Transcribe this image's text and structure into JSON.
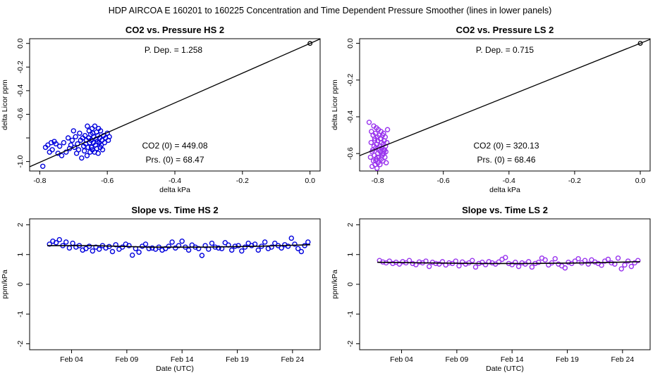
{
  "suptitle": "HDP    AIRCOA E    160201 to 160225    Concentration and Time Dependent Pressure Smoother (lines in lower panels)",
  "colors": {
    "hs": "#0000dd",
    "ls": "#9933ee",
    "line": "#000000"
  },
  "chart_data": [
    {
      "id": "p1",
      "type": "scatter",
      "title": "CO2 vs. Pressure HS 2",
      "xlabel": "delta kPa",
      "ylabel": "delta Licor ppm",
      "xlim": [
        -0.83,
        0.03
      ],
      "ylim": [
        -1.08,
        0.04
      ],
      "xticks": [
        -0.8,
        -0.6,
        -0.4,
        -0.2,
        0.0
      ],
      "xtick_labels": [
        "-0.8",
        "-0.6",
        "-0.4",
        "-0.2",
        "0.0"
      ],
      "yticks": [
        -1.0,
        -0.8,
        -0.6,
        -0.4,
        -0.2,
        0.0
      ],
      "ytick_labels": [
        "-1.0",
        "",
        "-0.6",
        "-0.4",
        "-0.2",
        "0.0"
      ],
      "color_key": "hs",
      "fit_slope": 1.258,
      "anchor_point": [
        0.0,
        0.0
      ],
      "points_x": [
        -0.791,
        -0.783,
        -0.776,
        -0.771,
        -0.766,
        -0.763,
        -0.757,
        -0.752,
        -0.746,
        -0.741,
        -0.735,
        -0.729,
        -0.722,
        -0.716,
        -0.712,
        -0.708,
        -0.704,
        -0.7,
        -0.697,
        -0.694,
        -0.691,
        -0.688,
        -0.685,
        -0.682,
        -0.679,
        -0.676,
        -0.673,
        -0.67,
        -0.668,
        -0.666,
        -0.664,
        -0.662,
        -0.66,
        -0.659,
        -0.657,
        -0.655,
        -0.654,
        -0.652,
        -0.651,
        -0.649,
        -0.648,
        -0.647,
        -0.645,
        -0.644,
        -0.643,
        -0.641,
        -0.64,
        -0.638,
        -0.637,
        -0.635,
        -0.633,
        -0.632,
        -0.631,
        -0.63,
        -0.628,
        -0.627,
        -0.626,
        -0.624,
        -0.623,
        -0.621,
        -0.62,
        -0.618,
        -0.616,
        -0.614,
        -0.611,
        -0.608,
        -0.605,
        -0.6,
        -0.597,
        -0.594
      ],
      "points_y": [
        -1.04,
        -0.88,
        -0.86,
        -0.92,
        -0.84,
        -0.9,
        -0.83,
        -0.85,
        -0.93,
        -0.87,
        -0.95,
        -0.84,
        -0.92,
        -0.8,
        -0.89,
        -0.86,
        -0.82,
        -0.74,
        -0.88,
        -0.79,
        -0.93,
        -0.85,
        -0.9,
        -0.76,
        -0.82,
        -0.97,
        -0.8,
        -0.87,
        -0.91,
        -0.78,
        -0.85,
        -0.82,
        -0.95,
        -0.7,
        -0.88,
        -0.8,
        -0.74,
        -0.84,
        -0.92,
        -0.77,
        -0.82,
        -0.88,
        -0.72,
        -0.9,
        -0.76,
        -0.84,
        -0.79,
        -0.92,
        -0.7,
        -0.86,
        -0.81,
        -0.75,
        -0.89,
        -0.83,
        -0.78,
        -0.93,
        -0.72,
        -0.84,
        -0.8,
        -0.88,
        -0.74,
        -0.86,
        -0.82,
        -0.9,
        -0.78,
        -0.84,
        -0.8,
        -0.76,
        -0.82,
        -0.79
      ],
      "annotations": {
        "pdep": "P. Dep. =  1.258",
        "co2_0": "CO2 (0) =  449.08",
        "prs_0": "Prs. (0) =  68.47"
      }
    },
    {
      "id": "p2",
      "type": "scatter",
      "title": "CO2 vs. Pressure LS 2",
      "xlabel": "delta kPa",
      "ylabel": "delta Licor ppm",
      "xlim": [
        -0.855,
        0.03
      ],
      "ylim": [
        -0.695,
        0.025
      ],
      "xticks": [
        -0.8,
        -0.6,
        -0.4,
        -0.2,
        0.0
      ],
      "xtick_labels": [
        "-0.8",
        "-0.6",
        "-0.4",
        "-0.2",
        "0.0"
      ],
      "yticks": [
        -0.6,
        -0.4,
        -0.2,
        0.0
      ],
      "ytick_labels": [
        "-0.6",
        "-0.4",
        "-0.2",
        "0.0"
      ],
      "color_key": "ls",
      "fit_slope": 0.715,
      "anchor_point": [
        0.0,
        0.0
      ],
      "points_x": [
        -0.826,
        -0.822,
        -0.82,
        -0.819,
        -0.817,
        -0.815,
        -0.814,
        -0.813,
        -0.812,
        -0.811,
        -0.81,
        -0.809,
        -0.808,
        -0.807,
        -0.806,
        -0.805,
        -0.804,
        -0.803,
        -0.802,
        -0.801,
        -0.8,
        -0.8,
        -0.799,
        -0.798,
        -0.797,
        -0.796,
        -0.795,
        -0.794,
        -0.793,
        -0.792,
        -0.791,
        -0.79,
        -0.789,
        -0.788,
        -0.787,
        -0.786,
        -0.785,
        -0.784,
        -0.783,
        -0.782,
        -0.781,
        -0.78,
        -0.779,
        -0.778,
        -0.777,
        -0.776,
        -0.775,
        -0.774,
        -0.772,
        -0.77,
        -0.817,
        -0.809,
        -0.801,
        -0.793,
        -0.785,
        -0.814,
        -0.806,
        -0.798,
        -0.79,
        -0.782
      ],
      "points_y": [
        -0.43,
        -0.62,
        -0.54,
        -0.48,
        -0.67,
        -0.58,
        -0.5,
        -0.64,
        -0.45,
        -0.56,
        -0.61,
        -0.52,
        -0.66,
        -0.49,
        -0.57,
        -0.63,
        -0.46,
        -0.55,
        -0.68,
        -0.51,
        -0.6,
        -0.53,
        -0.65,
        -0.47,
        -0.58,
        -0.62,
        -0.5,
        -0.56,
        -0.66,
        -0.52,
        -0.59,
        -0.48,
        -0.63,
        -0.54,
        -0.57,
        -0.61,
        -0.5,
        -0.64,
        -0.55,
        -0.49,
        -0.6,
        -0.53,
        -0.58,
        -0.62,
        -0.51,
        -0.56,
        -0.59,
        -0.65,
        -0.54,
        -0.47,
        -0.59,
        -0.53,
        -0.62,
        -0.56,
        -0.6,
        -0.5,
        -0.64,
        -0.57,
        -0.52,
        -0.58
      ],
      "annotations": {
        "pdep": "P. Dep. =  0.715",
        "co2_0": "CO2 (0) =  320.13",
        "prs_0": "Prs. (0) =  68.46"
      }
    },
    {
      "id": "p3",
      "type": "scatter",
      "title": "Slope vs. Time HS 2",
      "xlabel": "Date (UTC)",
      "ylabel": "ppm/kPa",
      "xlim": [
        -0.8,
        25.5
      ],
      "ylim": [
        -2.2,
        2.2
      ],
      "xticks": [
        3,
        8,
        13,
        18,
        23
      ],
      "xtick_labels": [
        "Feb 04",
        "Feb 09",
        "Feb 14",
        "Feb 19",
        "Feb 24"
      ],
      "yticks": [
        -2,
        -1,
        0,
        1,
        2
      ],
      "ytick_labels": [
        "-2",
        "-1",
        "0",
        "1",
        "2"
      ],
      "color_key": "hs",
      "smoother": {
        "x": [
          0.8,
          5,
          10,
          15,
          20,
          24.6
        ],
        "y": [
          1.3,
          1.3,
          1.25,
          1.25,
          1.28,
          1.33
        ]
      },
      "points_x": [
        1.0,
        1.3,
        1.6,
        1.9,
        2.2,
        2.5,
        2.8,
        3.1,
        3.4,
        3.7,
        4.0,
        4.3,
        4.6,
        4.9,
        5.2,
        5.5,
        5.8,
        6.1,
        6.4,
        6.7,
        7.0,
        7.3,
        7.6,
        7.9,
        8.2,
        8.5,
        8.8,
        9.1,
        9.4,
        9.7,
        10.0,
        10.3,
        10.6,
        10.9,
        11.2,
        11.5,
        11.8,
        12.1,
        12.4,
        12.7,
        13.0,
        13.3,
        13.6,
        13.9,
        14.2,
        14.5,
        14.8,
        15.1,
        15.4,
        15.7,
        16.0,
        16.3,
        16.6,
        16.9,
        17.2,
        17.5,
        17.8,
        18.1,
        18.4,
        18.7,
        19.0,
        19.3,
        19.6,
        19.9,
        20.2,
        20.5,
        20.8,
        21.1,
        21.4,
        21.7,
        22.0,
        22.3,
        22.6,
        22.9,
        23.2,
        23.5,
        23.8,
        24.1,
        24.4
      ],
      "points_y": [
        1.35,
        1.45,
        1.4,
        1.5,
        1.3,
        1.42,
        1.22,
        1.38,
        1.25,
        1.3,
        1.15,
        1.2,
        1.28,
        1.12,
        1.25,
        1.18,
        1.3,
        1.22,
        1.27,
        1.1,
        1.33,
        1.18,
        1.25,
        1.35,
        1.3,
        0.98,
        1.2,
        1.08,
        1.28,
        1.35,
        1.2,
        1.22,
        1.18,
        1.25,
        1.15,
        1.2,
        1.28,
        1.42,
        1.22,
        1.3,
        1.45,
        1.25,
        1.15,
        1.32,
        1.25,
        1.2,
        0.97,
        1.3,
        1.18,
        1.38,
        1.25,
        1.22,
        1.2,
        1.4,
        1.32,
        1.15,
        1.28,
        1.3,
        1.12,
        1.25,
        1.38,
        1.3,
        1.35,
        1.15,
        1.28,
        1.42,
        1.2,
        1.25,
        1.38,
        1.3,
        1.22,
        1.33,
        1.28,
        1.55,
        1.35,
        1.2,
        1.1,
        1.3,
        1.42
      ]
    },
    {
      "id": "p4",
      "type": "scatter",
      "title": "Slope vs. Time LS 2",
      "xlabel": "Date (UTC)",
      "ylabel": "ppm/kPa",
      "xlim": [
        -0.8,
        25.5
      ],
      "ylim": [
        -2.2,
        2.2
      ],
      "xticks": [
        3,
        8,
        13,
        18,
        23
      ],
      "xtick_labels": [
        "Feb 04",
        "Feb 09",
        "Feb 14",
        "Feb 19",
        "Feb 24"
      ],
      "yticks": [
        -2,
        -1,
        0,
        1,
        2
      ],
      "ytick_labels": [
        "-2",
        "-1",
        "0",
        "1",
        "2"
      ],
      "color_key": "ls",
      "smoother": {
        "x": [
          0.8,
          5,
          10,
          15,
          20,
          24.6
        ],
        "y": [
          0.74,
          0.72,
          0.7,
          0.7,
          0.72,
          0.76
        ]
      },
      "points_x": [
        1.0,
        1.3,
        1.6,
        1.9,
        2.2,
        2.5,
        2.8,
        3.1,
        3.4,
        3.7,
        4.0,
        4.3,
        4.6,
        4.9,
        5.2,
        5.5,
        5.8,
        6.1,
        6.4,
        6.7,
        7.0,
        7.3,
        7.6,
        7.9,
        8.2,
        8.5,
        8.8,
        9.1,
        9.4,
        9.7,
        10.0,
        10.3,
        10.6,
        10.9,
        11.2,
        11.5,
        11.8,
        12.1,
        12.4,
        12.7,
        13.0,
        13.3,
        13.6,
        13.9,
        14.2,
        14.5,
        14.8,
        15.1,
        15.4,
        15.7,
        16.0,
        16.3,
        16.6,
        16.9,
        17.2,
        17.5,
        17.8,
        18.1,
        18.4,
        18.7,
        19.0,
        19.3,
        19.6,
        19.9,
        20.2,
        20.5,
        20.8,
        21.1,
        21.4,
        21.7,
        22.0,
        22.3,
        22.6,
        22.9,
        23.2,
        23.5,
        23.8,
        24.1,
        24.4
      ],
      "points_y": [
        0.8,
        0.75,
        0.72,
        0.78,
        0.7,
        0.74,
        0.68,
        0.76,
        0.72,
        0.8,
        0.7,
        0.66,
        0.75,
        0.72,
        0.78,
        0.6,
        0.74,
        0.7,
        0.68,
        0.76,
        0.65,
        0.72,
        0.7,
        0.78,
        0.62,
        0.75,
        0.68,
        0.72,
        0.8,
        0.58,
        0.7,
        0.74,
        0.66,
        0.76,
        0.72,
        0.68,
        0.75,
        0.84,
        0.9,
        0.7,
        0.66,
        0.74,
        0.6,
        0.72,
        0.68,
        0.76,
        0.58,
        0.7,
        0.74,
        0.88,
        0.82,
        0.65,
        0.72,
        0.86,
        0.68,
        0.62,
        0.55,
        0.74,
        0.7,
        0.78,
        0.86,
        0.72,
        0.8,
        0.68,
        0.82,
        0.75,
        0.7,
        0.64,
        0.78,
        0.84,
        0.72,
        0.68,
        0.88,
        0.52,
        0.65,
        0.78,
        0.6,
        0.72,
        0.8
      ]
    }
  ]
}
